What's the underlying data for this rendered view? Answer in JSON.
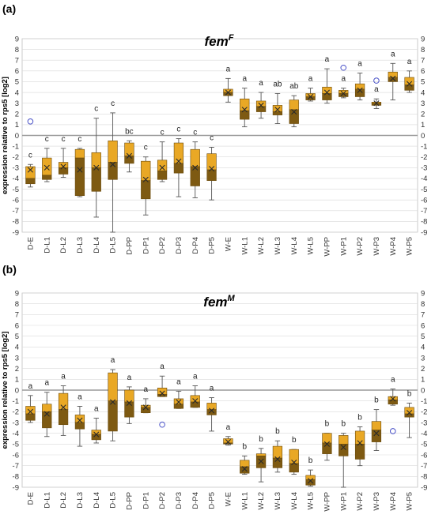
{
  "colors": {
    "box_upper": "#E9A825",
    "box_lower": "#7E5A12",
    "box_edge": "#6B4A0C",
    "whisker": "#555555",
    "outlier": "#4A52C8",
    "zero_line": "#9A9A9A",
    "grid": "#D9D9D9"
  },
  "chart_data": [
    {
      "type": "box",
      "panel_label": "(a)",
      "gene": "fem",
      "gene_sup": "F",
      "ylabel": "expression relative to rps5 [log2]",
      "ylim": [
        -9,
        9
      ],
      "yticks": [
        -9,
        -8,
        -7,
        -6,
        -5,
        -4,
        -3,
        -2,
        -1,
        0,
        1,
        2,
        3,
        4,
        5,
        6,
        7,
        8,
        9
      ],
      "grid": true,
      "categories": [
        "D-E",
        "D-L1",
        "D-L2",
        "D-L3",
        "D-L4",
        "D-L5",
        "D-PP",
        "D-P1",
        "D-P2",
        "D-P3",
        "D-P4",
        "D-P5",
        "W-E",
        "W-L1",
        "W-L2",
        "W-L3",
        "W-L4",
        "W-L5",
        "W-PP",
        "W-P1",
        "W-P2",
        "W-P3",
        "W-P4",
        "W-P5"
      ],
      "letters": [
        "c",
        "c",
        "c",
        "c",
        "c",
        "c",
        "bc",
        "c",
        "c",
        "c",
        "c",
        "c",
        "a",
        "a",
        "a",
        "ab",
        "ab",
        "a",
        "a",
        "a",
        "a",
        "a",
        "a",
        "a"
      ],
      "boxes": [
        {
          "min": -4.8,
          "q1": -4.5,
          "median": -4.0,
          "q3": -2.9,
          "max": -2.7,
          "mean": -3.2
        },
        {
          "min": -4.3,
          "q1": -4.1,
          "median": -3.7,
          "q3": -2.1,
          "max": -1.2,
          "mean": -3.0
        },
        {
          "min": -3.9,
          "q1": -3.6,
          "median": -3.0,
          "q3": -2.5,
          "max": -1.2,
          "mean": -2.9
        },
        {
          "min": -5.7,
          "q1": -5.6,
          "median": -2.1,
          "q3": -1.3,
          "max": -1.2,
          "mean": -3.2
        },
        {
          "min": -7.6,
          "q1": -5.2,
          "median": -3.0,
          "q3": -1.6,
          "max": 1.6,
          "mean": -3.0
        },
        {
          "min": -9.0,
          "q1": -4.1,
          "median": -2.5,
          "q3": -0.5,
          "max": 2.1,
          "mean": -2.7
        },
        {
          "min": -3.4,
          "q1": -2.6,
          "median": -1.9,
          "q3": -0.7,
          "max": -0.5,
          "mean": -1.9
        },
        {
          "min": -7.4,
          "q1": -5.9,
          "median": -4.2,
          "q3": -2.4,
          "max": -2.0,
          "mean": -4.1
        },
        {
          "min": -4.3,
          "q1": -4.1,
          "median": -3.3,
          "q3": -2.3,
          "max": -0.6,
          "mean": -3.0
        },
        {
          "min": -5.7,
          "q1": -3.5,
          "median": -2.6,
          "q3": -0.7,
          "max": -0.3,
          "mean": -2.4
        },
        {
          "min": -5.8,
          "q1": -4.7,
          "median": -2.9,
          "q3": -1.3,
          "max": -0.6,
          "mean": -3.0
        },
        {
          "min": -6.0,
          "q1": -4.2,
          "median": -3.2,
          "q3": -1.7,
          "max": -1.1,
          "mean": -3.1
        },
        {
          "min": 3.1,
          "q1": 3.7,
          "median": 4.0,
          "q3": 4.3,
          "max": 5.3,
          "mean": 4.0
        },
        {
          "min": 0.8,
          "q1": 1.5,
          "median": 2.3,
          "q3": 3.4,
          "max": 4.4,
          "mean": 2.4
        },
        {
          "min": 1.6,
          "q1": 2.2,
          "median": 2.7,
          "q3": 3.2,
          "max": 4.0,
          "mean": 2.8
        },
        {
          "min": 1.1,
          "q1": 1.9,
          "median": 2.2,
          "q3": 2.8,
          "max": 3.9,
          "mean": 2.4
        },
        {
          "min": 0.8,
          "q1": 1.1,
          "median": 2.4,
          "q3": 3.3,
          "max": 3.7,
          "mean": 2.2
        },
        {
          "min": 3.2,
          "q1": 3.3,
          "median": 3.6,
          "q3": 3.9,
          "max": 4.4,
          "mean": 3.6
        },
        {
          "min": 3.0,
          "q1": 3.3,
          "median": 3.9,
          "q3": 4.5,
          "max": 6.2,
          "mean": 4.0
        },
        {
          "min": 3.5,
          "q1": 3.6,
          "median": 3.9,
          "q3": 4.2,
          "max": 4.4,
          "mean": 3.9
        },
        {
          "min": 3.3,
          "q1": 3.6,
          "median": 4.3,
          "q3": 4.8,
          "max": 5.8,
          "mean": 4.2
        },
        {
          "min": 2.5,
          "q1": 2.8,
          "median": 3.0,
          "q3": 3.1,
          "max": 3.4,
          "mean": 3.0
        },
        {
          "min": 3.3,
          "q1": 5.0,
          "median": 5.4,
          "q3": 5.9,
          "max": 6.7,
          "mean": 5.3
        },
        {
          "min": 4.0,
          "q1": 4.2,
          "median": 4.7,
          "q3": 5.4,
          "max": 6.0,
          "mean": 4.8
        }
      ],
      "outliers": [
        {
          "category": "D-E",
          "y": 1.3
        },
        {
          "category": "W-P1",
          "y": 6.3
        },
        {
          "category": "W-P3",
          "y": 5.1
        }
      ]
    },
    {
      "type": "box",
      "panel_label": "(b)",
      "gene": "fem",
      "gene_sup": "M",
      "ylabel": "expression relative to rps5 [log2]",
      "ylim": [
        -9,
        9
      ],
      "yticks": [
        -9,
        -8,
        -7,
        -6,
        -5,
        -4,
        -3,
        -2,
        -1,
        0,
        1,
        2,
        3,
        4,
        5,
        6,
        7,
        8,
        9
      ],
      "grid": true,
      "categories": [
        "D-E",
        "D-L1",
        "D-L2",
        "D-L3",
        "D-L4",
        "D-L5",
        "D-PP",
        "D-P1",
        "D-P2",
        "D-P3",
        "D-P4",
        "D-P5",
        "W-E",
        "W-L1",
        "W-L2",
        "W-L3",
        "W-L4",
        "W-L5",
        "W-PP",
        "W-P1",
        "W-P2",
        "W-P3",
        "W-P4",
        "W-P5"
      ],
      "letters": [
        "a",
        "a",
        "a",
        "a",
        "a",
        "a",
        "a",
        "a",
        "a",
        "a",
        "a",
        "a",
        "a",
        "b",
        "b",
        "b",
        "b",
        "b",
        "b",
        "b",
        "b",
        "b",
        "a",
        "b"
      ],
      "boxes": [
        {
          "min": -3.0,
          "q1": -2.8,
          "median": -2.2,
          "q3": -1.5,
          "max": -0.5,
          "mean": -2.0
        },
        {
          "min": -4.3,
          "q1": -3.5,
          "median": -2.0,
          "q3": -1.3,
          "max": -0.2,
          "mean": -2.2
        },
        {
          "min": -4.2,
          "q1": -3.2,
          "median": -1.8,
          "q3": -0.3,
          "max": 0.4,
          "mean": -1.6
        },
        {
          "min": -5.2,
          "q1": -3.6,
          "median": -3.0,
          "q3": -2.3,
          "max": -1.5,
          "mean": -2.8
        },
        {
          "min": -4.9,
          "q1": -4.6,
          "median": -4.1,
          "q3": -3.7,
          "max": -2.6,
          "mean": -4.1
        },
        {
          "min": -4.7,
          "q1": -3.8,
          "median": -1.0,
          "q3": 1.6,
          "max": 1.9,
          "mean": -1.1
        },
        {
          "min": -3.1,
          "q1": -2.5,
          "median": -1.1,
          "q3": 0.0,
          "max": 0.3,
          "mean": -1.2
        },
        {
          "min": -2.1,
          "q1": -2.1,
          "median": -1.6,
          "q3": -1.4,
          "max": -0.8,
          "mean": -1.6
        },
        {
          "min": -0.6,
          "q1": -0.6,
          "median": -0.4,
          "q3": 0.2,
          "max": 1.3,
          "mean": -0.3
        },
        {
          "min": -1.7,
          "q1": -1.7,
          "median": -1.3,
          "q3": -0.8,
          "max": -0.1,
          "mean": -1.1
        },
        {
          "min": -1.6,
          "q1": -1.6,
          "median": -1.1,
          "q3": -0.5,
          "max": 0.4,
          "mean": -1.0
        },
        {
          "min": -3.8,
          "q1": -2.3,
          "median": -1.8,
          "q3": -1.2,
          "max": -0.7,
          "mean": -1.9
        },
        {
          "min": -5.1,
          "q1": -5.0,
          "median": -4.9,
          "q3": -4.5,
          "max": -4.3,
          "mean": -4.8
        },
        {
          "min": -7.8,
          "q1": -7.7,
          "median": -7.1,
          "q3": -6.5,
          "max": -6.1,
          "mean": -7.3
        },
        {
          "min": -8.5,
          "q1": -7.2,
          "median": -6.1,
          "q3": -5.9,
          "max": -5.4,
          "mean": -6.6
        },
        {
          "min": -7.6,
          "q1": -7.2,
          "median": -6.3,
          "q3": -5.2,
          "max": -4.7,
          "mean": -6.4
        },
        {
          "min": -7.8,
          "q1": -7.6,
          "median": -6.8,
          "q3": -5.5,
          "max": -5.5,
          "mean": -6.7
        },
        {
          "min": -8.9,
          "q1": -8.8,
          "median": -8.3,
          "q3": -7.9,
          "max": -7.4,
          "mean": -8.4
        },
        {
          "min": -6.5,
          "q1": -5.9,
          "median": -4.9,
          "q3": -4.0,
          "max": -4.0,
          "mean": -5.0
        },
        {
          "min": -9.0,
          "q1": -6.1,
          "median": -5.0,
          "q3": -4.2,
          "max": -4.0,
          "mean": -5.3
        },
        {
          "min": -7.0,
          "q1": -6.4,
          "median": -5.0,
          "q3": -3.8,
          "max": -3.4,
          "mean": -4.9
        },
        {
          "min": -5.6,
          "q1": -4.8,
          "median": -3.7,
          "q3": -2.9,
          "max": -1.8,
          "mean": -4.0
        },
        {
          "min": -1.4,
          "q1": -1.3,
          "median": -0.9,
          "q3": -0.6,
          "max": 0.1,
          "mean": -0.8
        },
        {
          "min": -4.4,
          "q1": -2.5,
          "median": -2.2,
          "q3": -1.6,
          "max": -1.2,
          "mean": -2.1
        }
      ],
      "outliers": [
        {
          "category": "D-P2",
          "y": -3.2
        },
        {
          "category": "W-P4",
          "y": -3.8
        }
      ]
    }
  ]
}
